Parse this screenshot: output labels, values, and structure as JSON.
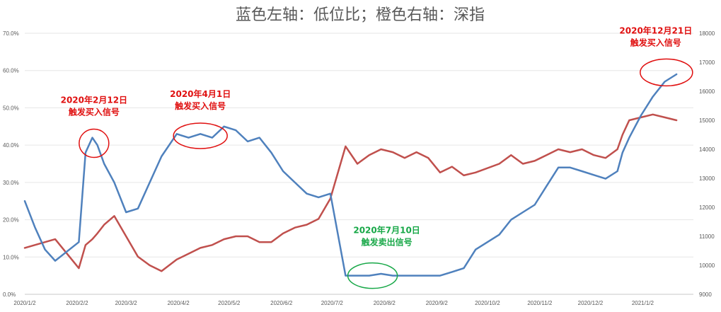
{
  "chart_data": {
    "type": "line",
    "title": "蓝色左轴：低位比；橙色右轴：深指",
    "x_tick_labels": [
      "2020/1/2",
      "2020/2/2",
      "2020/3/2",
      "2020/4/2",
      "2020/5/2",
      "2020/6/2",
      "2020/7/2",
      "2020/8/2",
      "2020/9/2",
      "2020/10/2",
      "2020/11/2",
      "2020/12/2",
      "2021/1/2"
    ],
    "y_left": {
      "ticks": [
        "0.0%",
        "10.0%",
        "20.0%",
        "30.0%",
        "40.0%",
        "50.0%",
        "60.0%",
        "70.0%"
      ],
      "range": [
        0,
        70
      ]
    },
    "y_right": {
      "ticks": [
        "9000",
        "10000",
        "11000",
        "12000",
        "13000",
        "14000",
        "15000",
        "16000",
        "17000",
        "18000"
      ],
      "range": [
        9000,
        18000
      ]
    },
    "grid": "horizontal",
    "series": [
      {
        "axis": "left",
        "color": "#4f81bd",
        "x": [
          "2020/1/2",
          "2020/1/8",
          "2020/1/14",
          "2020/1/20",
          "2020/2/3",
          "2020/2/7",
          "2020/2/11",
          "2020/2/14",
          "2020/2/18",
          "2020/2/24",
          "2020/3/2",
          "2020/3/9",
          "2020/3/16",
          "2020/3/23",
          "2020/4/1",
          "2020/4/8",
          "2020/4/15",
          "2020/4/22",
          "2020/4/29",
          "2020/5/6",
          "2020/5/13",
          "2020/5/20",
          "2020/5/27",
          "2020/6/3",
          "2020/6/10",
          "2020/6/17",
          "2020/6/24",
          "2020/7/1",
          "2020/7/10",
          "2020/7/17",
          "2020/7/24",
          "2020/7/31",
          "2020/8/7",
          "2020/8/14",
          "2020/8/21",
          "2020/8/28",
          "2020/9/4",
          "2020/9/11",
          "2020/9/18",
          "2020/9/25",
          "2020/10/9",
          "2020/10/16",
          "2020/10/23",
          "2020/10/30",
          "2020/11/6",
          "2020/11/13",
          "2020/11/20",
          "2020/11/27",
          "2020/12/4",
          "2020/12/11",
          "2020/12/18",
          "2020/12/21",
          "2020/12/25",
          "2021/1/1",
          "2021/1/8",
          "2021/1/15",
          "2021/1/22"
        ],
        "values": [
          25,
          18,
          12,
          9,
          14,
          38,
          42,
          40,
          35,
          30,
          22,
          23,
          30,
          37,
          43,
          42,
          43,
          42,
          45,
          44,
          41,
          42,
          38,
          33,
          30,
          27,
          26,
          27,
          5,
          5,
          5,
          5.5,
          5,
          5,
          5,
          5,
          5,
          6,
          7,
          12,
          16,
          20,
          22,
          24,
          29,
          34,
          34,
          33,
          32,
          31,
          33,
          38,
          42,
          48,
          53,
          57,
          59
        ]
      },
      {
        "axis": "right",
        "color": "#c0504d",
        "x": [
          "2020/1/2",
          "2020/1/8",
          "2020/1/14",
          "2020/1/20",
          "2020/2/3",
          "2020/2/7",
          "2020/2/11",
          "2020/2/14",
          "2020/2/18",
          "2020/2/24",
          "2020/3/2",
          "2020/3/9",
          "2020/3/16",
          "2020/3/23",
          "2020/4/1",
          "2020/4/8",
          "2020/4/15",
          "2020/4/22",
          "2020/4/29",
          "2020/5/6",
          "2020/5/13",
          "2020/5/20",
          "2020/5/27",
          "2020/6/3",
          "2020/6/10",
          "2020/6/17",
          "2020/6/24",
          "2020/7/1",
          "2020/7/10",
          "2020/7/17",
          "2020/7/24",
          "2020/7/31",
          "2020/8/7",
          "2020/8/14",
          "2020/8/21",
          "2020/8/28",
          "2020/9/4",
          "2020/9/11",
          "2020/9/18",
          "2020/9/25",
          "2020/10/9",
          "2020/10/16",
          "2020/10/23",
          "2020/10/30",
          "2020/11/6",
          "2020/11/13",
          "2020/11/20",
          "2020/11/27",
          "2020/12/4",
          "2020/12/11",
          "2020/12/18",
          "2020/12/21",
          "2020/12/25",
          "2021/1/1",
          "2021/1/8",
          "2021/1/15",
          "2021/1/22"
        ],
        "values": [
          10600,
          10700,
          10800,
          10900,
          9900,
          10700,
          10900,
          11100,
          11400,
          11700,
          11000,
          10300,
          10000,
          9800,
          10200,
          10400,
          10600,
          10700,
          10900,
          11000,
          11000,
          10800,
          10800,
          11100,
          11300,
          11400,
          11600,
          12300,
          14100,
          13500,
          13800,
          14000,
          13900,
          13700,
          13900,
          13700,
          13200,
          13400,
          13100,
          13200,
          13500,
          13800,
          13500,
          13600,
          13800,
          14000,
          13900,
          14000,
          13800,
          13700,
          14000,
          14500,
          15000,
          15100,
          15200,
          15100,
          15000
        ]
      }
    ],
    "annotations": [
      {
        "text": [
          "2020年2月12日",
          "触发买入信号"
        ],
        "color": "#e01010",
        "x": "2020/2/12",
        "value": 40.5
      },
      {
        "text": [
          "2020年4月1日",
          "触发买入信号"
        ],
        "color": "#e01010",
        "x": "2020/4/15",
        "value": 42.5
      },
      {
        "text": [
          "2020年7月10日",
          "触发卖出信号"
        ],
        "color": "#18a848",
        "x": "2020/7/26",
        "value": 5
      },
      {
        "text": [
          "2020年12月21日",
          "触发买入信号"
        ],
        "color": "#e01010",
        "x": "2021/1/16",
        "value": 59.5
      }
    ]
  }
}
